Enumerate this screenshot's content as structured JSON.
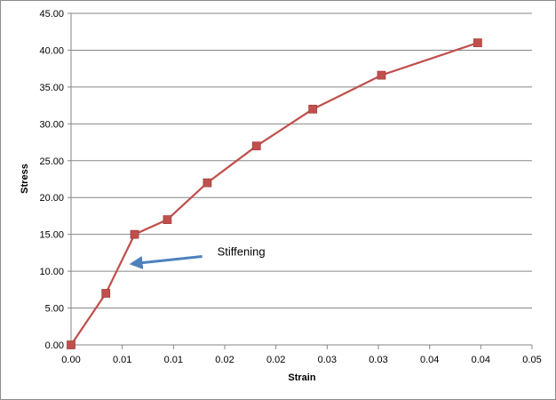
{
  "chart_data": {
    "type": "line",
    "title": "",
    "xlabel": "Strain",
    "ylabel": "Stress",
    "xlim": [
      0,
      0.045
    ],
    "ylim": [
      0,
      45
    ],
    "x_tick_values": [
      0,
      0.005,
      0.01,
      0.015,
      0.02,
      0.025,
      0.03,
      0.035,
      0.04,
      0.045
    ],
    "x_tick_labels": [
      "0.00",
      "0.01",
      "0.01",
      "0.02",
      "0.02",
      "0.03",
      "0.03",
      "0.04",
      "0.04",
      "0.05"
    ],
    "y_tick_values": [
      0,
      5,
      10,
      15,
      20,
      25,
      30,
      35,
      40,
      45
    ],
    "y_tick_labels": [
      "0.00",
      "5.00",
      "10.00",
      "15.00",
      "20.00",
      "25.00",
      "30.00",
      "35.00",
      "40.00",
      "45.00"
    ],
    "grid": "horizontal",
    "legend": "none",
    "series": [
      {
        "color": "#c0504d",
        "marker": "square",
        "points": [
          {
            "x": 0.0,
            "y": 0.0
          },
          {
            "x": 0.0034,
            "y": 7.0
          },
          {
            "x": 0.0062,
            "y": 15.0
          },
          {
            "x": 0.0094,
            "y": 17.0
          },
          {
            "x": 0.0133,
            "y": 22.0
          },
          {
            "x": 0.0181,
            "y": 27.0
          },
          {
            "x": 0.0236,
            "y": 32.0
          },
          {
            "x": 0.0303,
            "y": 36.6
          },
          {
            "x": 0.0397,
            "y": 41.0
          }
        ]
      }
    ],
    "annotations": [
      {
        "text": "Stiffening",
        "arrow_color": "#4f81bd",
        "target": {
          "x": 0.0062,
          "y": 11.0
        },
        "tail": {
          "x": 0.0128,
          "y": 12.0
        }
      }
    ]
  }
}
